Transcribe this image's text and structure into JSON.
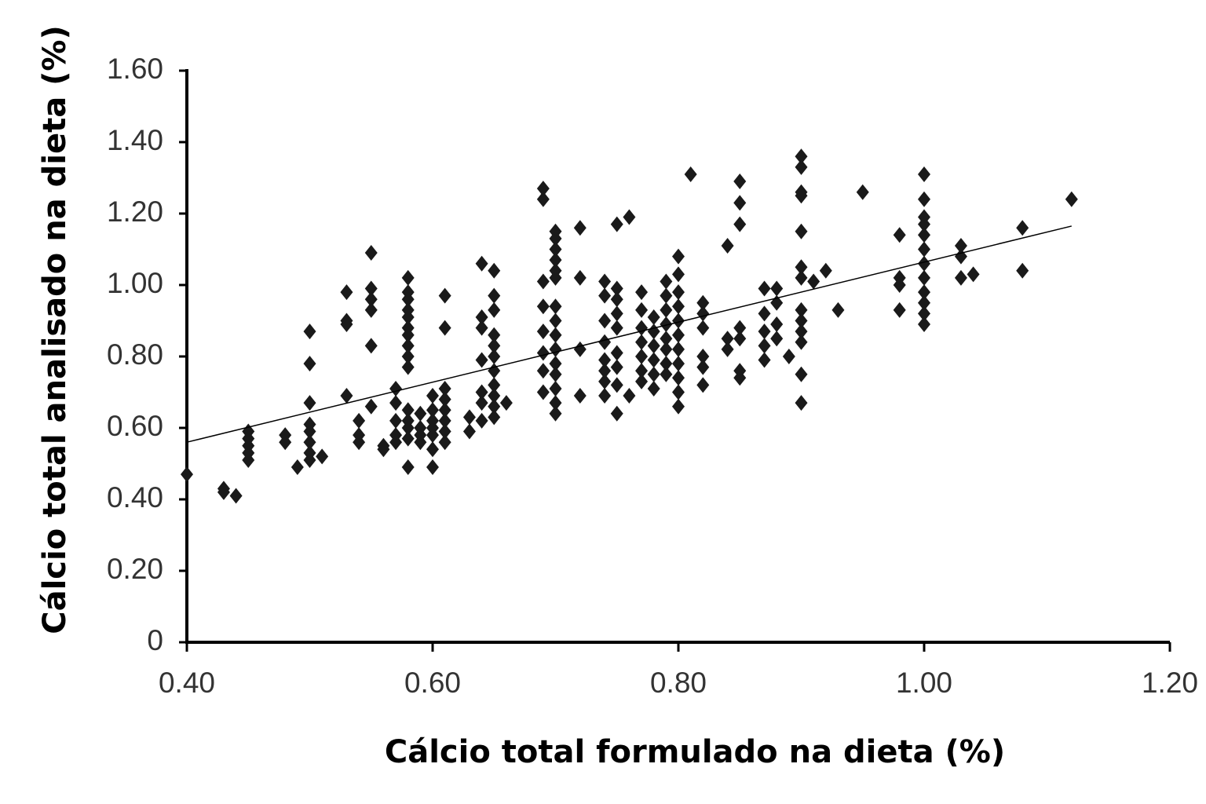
{
  "chart_data": {
    "type": "scatter",
    "xlabel": "Cálcio total formulado na dieta (%)",
    "ylabel": "Cálcio total analisado na dieta (%)",
    "xlim": [
      0.4,
      1.2
    ],
    "ylim": [
      0,
      1.6
    ],
    "xticks": [
      {
        "value": 0.4,
        "label": "0.40"
      },
      {
        "value": 0.6,
        "label": "0.60"
      },
      {
        "value": 0.8,
        "label": "0.80"
      },
      {
        "value": 1.0,
        "label": "1.00"
      },
      {
        "value": 1.2,
        "label": "1.20"
      }
    ],
    "yticks": [
      0,
      {
        "value": 0.2,
        "label": "0.20"
      },
      {
        "value": 0.4,
        "label": "0.40"
      },
      {
        "value": 0.6,
        "label": "0.60"
      },
      {
        "value": 0.8,
        "label": "0.80"
      },
      {
        "value": 1.0,
        "label": "1.00"
      },
      {
        "value": 1.2,
        "label": "1.20"
      },
      {
        "value": 1.4,
        "label": "1.40"
      },
      {
        "value": 1.6,
        "label": "1.60"
      }
    ],
    "trendline": {
      "x": [
        0.4,
        1.12
      ],
      "y": [
        0.56,
        1.165
      ],
      "color": "#000000"
    },
    "series": [
      {
        "color": "#1a1a1a",
        "x": [
          0.4,
          0.43,
          0.43,
          0.44,
          0.45,
          0.45,
          0.45,
          0.45,
          0.45,
          0.48,
          0.48,
          0.49,
          0.5,
          0.5,
          0.5,
          0.5,
          0.5,
          0.5,
          0.5,
          0.5,
          0.51,
          0.53,
          0.53,
          0.53,
          0.53,
          0.54,
          0.54,
          0.54,
          0.55,
          0.55,
          0.55,
          0.55,
          0.55,
          0.55,
          0.56,
          0.56,
          0.57,
          0.57,
          0.57,
          0.57,
          0.57,
          0.58,
          0.58,
          0.58,
          0.58,
          0.58,
          0.58,
          0.58,
          0.58,
          0.58,
          0.58,
          0.58,
          0.58,
          0.58,
          0.58,
          0.58,
          0.59,
          0.59,
          0.59,
          0.59,
          0.6,
          0.6,
          0.6,
          0.6,
          0.6,
          0.6,
          0.6,
          0.61,
          0.61,
          0.61,
          0.61,
          0.61,
          0.61,
          0.61,
          0.61,
          0.63,
          0.63,
          0.64,
          0.64,
          0.64,
          0.64,
          0.64,
          0.64,
          0.64,
          0.65,
          0.65,
          0.65,
          0.65,
          0.65,
          0.65,
          0.65,
          0.65,
          0.65,
          0.65,
          0.65,
          0.66,
          0.69,
          0.69,
          0.69,
          0.69,
          0.69,
          0.69,
          0.69,
          0.69,
          0.7,
          0.7,
          0.7,
          0.7,
          0.7,
          0.7,
          0.7,
          0.7,
          0.7,
          0.7,
          0.7,
          0.7,
          0.7,
          0.7,
          0.7,
          0.72,
          0.72,
          0.72,
          0.72,
          0.74,
          0.74,
          0.74,
          0.74,
          0.74,
          0.74,
          0.74,
          0.74,
          0.75,
          0.75,
          0.75,
          0.75,
          0.75,
          0.75,
          0.75,
          0.75,
          0.75,
          0.76,
          0.76,
          0.77,
          0.77,
          0.77,
          0.77,
          0.77,
          0.77,
          0.77,
          0.78,
          0.78,
          0.78,
          0.78,
          0.78,
          0.78,
          0.79,
          0.79,
          0.79,
          0.79,
          0.79,
          0.79,
          0.79,
          0.79,
          0.8,
          0.8,
          0.8,
          0.8,
          0.8,
          0.8,
          0.8,
          0.8,
          0.8,
          0.8,
          0.8,
          0.81,
          0.82,
          0.82,
          0.82,
          0.82,
          0.82,
          0.82,
          0.84,
          0.84,
          0.84,
          0.85,
          0.85,
          0.85,
          0.85,
          0.85,
          0.85,
          0.85,
          0.87,
          0.87,
          0.87,
          0.87,
          0.87,
          0.88,
          0.88,
          0.88,
          0.88,
          0.89,
          0.9,
          0.9,
          0.9,
          0.9,
          0.9,
          0.9,
          0.9,
          0.9,
          0.9,
          0.9,
          0.9,
          0.9,
          0.9,
          0.91,
          0.92,
          0.93,
          0.95,
          0.98,
          0.98,
          0.98,
          0.98,
          1.0,
          1.0,
          1.0,
          1.0,
          1.0,
          1.0,
          1.0,
          1.0,
          1.0,
          1.0,
          1.0,
          1.0,
          1.03,
          1.03,
          1.03,
          1.04,
          1.08,
          1.08,
          1.12
        ],
        "values": [
          0.47,
          0.43,
          0.42,
          0.41,
          0.59,
          0.57,
          0.55,
          0.53,
          0.51,
          0.58,
          0.56,
          0.49,
          0.87,
          0.78,
          0.67,
          0.61,
          0.59,
          0.56,
          0.53,
          0.51,
          0.52,
          0.98,
          0.9,
          0.89,
          0.69,
          0.62,
          0.58,
          0.56,
          1.09,
          0.99,
          0.96,
          0.93,
          0.83,
          0.66,
          0.55,
          0.54,
          0.71,
          0.67,
          0.62,
          0.58,
          0.56,
          1.02,
          0.98,
          0.96,
          0.93,
          0.91,
          0.88,
          0.86,
          0.83,
          0.8,
          0.77,
          0.65,
          0.62,
          0.6,
          0.57,
          0.49,
          0.64,
          0.6,
          0.58,
          0.56,
          0.69,
          0.65,
          0.62,
          0.6,
          0.58,
          0.54,
          0.49,
          0.97,
          0.88,
          0.71,
          0.68,
          0.65,
          0.62,
          0.59,
          0.56,
          0.63,
          0.59,
          1.06,
          0.91,
          0.88,
          0.79,
          0.7,
          0.67,
          0.62,
          1.04,
          0.97,
          0.93,
          0.86,
          0.83,
          0.8,
          0.76,
          0.72,
          0.69,
          0.66,
          0.63,
          0.67,
          1.27,
          1.24,
          1.01,
          0.94,
          0.87,
          0.81,
          0.76,
          0.7,
          1.15,
          1.13,
          1.1,
          1.07,
          1.04,
          1.02,
          0.94,
          0.9,
          0.86,
          0.82,
          0.78,
          0.75,
          0.71,
          0.67,
          0.64,
          1.16,
          1.02,
          0.82,
          0.69,
          1.01,
          0.97,
          0.9,
          0.84,
          0.79,
          0.76,
          0.73,
          0.69,
          1.17,
          0.99,
          0.96,
          0.92,
          0.88,
          0.81,
          0.77,
          0.72,
          0.64,
          1.19,
          0.69,
          0.98,
          0.93,
          0.88,
          0.84,
          0.8,
          0.76,
          0.73,
          0.91,
          0.87,
          0.83,
          0.79,
          0.75,
          0.71,
          1.01,
          0.97,
          0.93,
          0.89,
          0.85,
          0.82,
          0.78,
          0.75,
          1.08,
          1.03,
          0.98,
          0.94,
          0.9,
          0.86,
          0.82,
          0.78,
          0.74,
          0.7,
          0.66,
          1.31,
          0.95,
          0.92,
          0.88,
          0.8,
          0.77,
          0.72,
          1.11,
          0.85,
          0.82,
          1.29,
          1.23,
          1.17,
          0.88,
          0.85,
          0.76,
          0.74,
          0.99,
          0.92,
          0.87,
          0.83,
          0.79,
          0.99,
          0.95,
          0.89,
          0.85,
          0.8,
          1.36,
          1.33,
          1.26,
          1.25,
          1.15,
          1.05,
          1.02,
          0.93,
          0.9,
          0.87,
          0.84,
          0.75,
          0.67,
          1.01,
          1.04,
          0.93,
          1.26,
          1.14,
          1.02,
          1.0,
          0.93,
          1.31,
          1.24,
          1.19,
          1.17,
          1.14,
          1.1,
          1.06,
          1.02,
          0.98,
          0.95,
          0.92,
          0.89,
          1.11,
          1.08,
          1.02,
          1.03,
          1.16,
          1.04,
          1.24
        ]
      }
    ]
  }
}
